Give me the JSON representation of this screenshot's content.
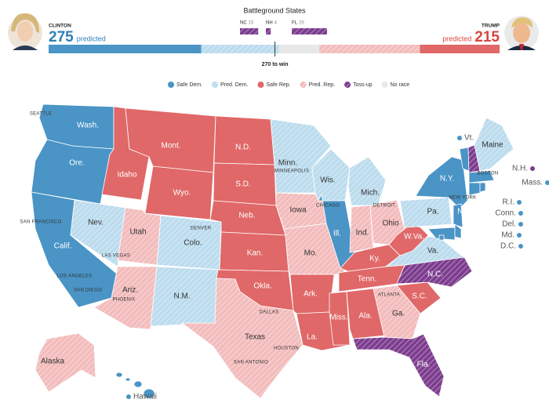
{
  "header": {
    "title": "Battleground States",
    "threshold": {
      "value": 270,
      "label": "270 to win"
    },
    "clinton": {
      "name": "CLINTON",
      "votes": 275,
      "label": "predicted",
      "color": "#2f7fb8"
    },
    "trump": {
      "name": "TRUMP",
      "votes": 215,
      "label": "predicted",
      "color": "#d9453f"
    }
  },
  "battleground": [
    {
      "state": "NC",
      "votes": 15
    },
    {
      "state": "NH",
      "votes": 4
    },
    {
      "state": "FL",
      "votes": 29
    }
  ],
  "bar": {
    "values": [
      182,
      93,
      48,
      120,
      95
    ],
    "statuses": [
      "Safe Dem.",
      "Pred. Dem.",
      "No race",
      "Pred. Rep.",
      "Safe Rep."
    ]
  },
  "legend": [
    {
      "label": "Safe Dem.",
      "color": "#4a94c6",
      "hatch": false
    },
    {
      "label": "Pred. Dem.",
      "color": "#bcdcee",
      "hatch": true
    },
    {
      "label": "Safe Rep.",
      "color": "#e06868",
      "hatch": false
    },
    {
      "label": "Pred. Rep.",
      "color": "#f3bcbc",
      "hatch": true
    },
    {
      "label": "Toss-up",
      "color": "#7d3d8f",
      "hatch": true
    },
    {
      "label": "No race",
      "color": "#e8e8e8",
      "hatch": false
    }
  ],
  "states": [
    {
      "label": "Wash.",
      "status": "Safe Dem."
    },
    {
      "label": "Ore.",
      "status": "Safe Dem."
    },
    {
      "label": "Calif.",
      "status": "Safe Dem."
    },
    {
      "label": "Nev.",
      "status": "Pred. Dem."
    },
    {
      "label": "Idaho",
      "status": "Safe Rep."
    },
    {
      "label": "Mont.",
      "status": "Safe Rep."
    },
    {
      "label": "Wyo.",
      "status": "Safe Rep."
    },
    {
      "label": "Utah",
      "status": "Pred. Rep."
    },
    {
      "label": "Colo.",
      "status": "Pred. Dem."
    },
    {
      "label": "Ariz.",
      "status": "Pred. Rep."
    },
    {
      "label": "N.M.",
      "status": "Pred. Dem."
    },
    {
      "label": "N.D.",
      "status": "Safe Rep."
    },
    {
      "label": "S.D.",
      "status": "Safe Rep."
    },
    {
      "label": "Neb.",
      "status": "Safe Rep."
    },
    {
      "label": "Kan.",
      "status": "Safe Rep."
    },
    {
      "label": "Okla.",
      "status": "Safe Rep."
    },
    {
      "label": "Texas",
      "status": "Pred. Rep."
    },
    {
      "label": "Minn.",
      "status": "Pred. Dem."
    },
    {
      "label": "Iowa",
      "status": "Pred. Rep."
    },
    {
      "label": "Mo.",
      "status": "Pred. Rep."
    },
    {
      "label": "Ark.",
      "status": "Safe Rep."
    },
    {
      "label": "La.",
      "status": "Safe Rep."
    },
    {
      "label": "Wis.",
      "status": "Pred. Dem."
    },
    {
      "label": "Ill.",
      "status": "Safe Dem."
    },
    {
      "label": "Mich.",
      "status": "Pred. Dem."
    },
    {
      "label": "Ind.",
      "status": "Pred. Rep."
    },
    {
      "label": "Ohio",
      "status": "Pred. Rep."
    },
    {
      "label": "Ky.",
      "status": "Safe Rep."
    },
    {
      "label": "Tenn.",
      "status": "Safe Rep."
    },
    {
      "label": "Miss.",
      "status": "Safe Rep."
    },
    {
      "label": "Ala.",
      "status": "Safe Rep."
    },
    {
      "label": "Ga.",
      "status": "Pred. Rep."
    },
    {
      "label": "Fla.",
      "status": "Toss-up"
    },
    {
      "label": "S.C.",
      "status": "Safe Rep."
    },
    {
      "label": "N.C.",
      "status": "Toss-up"
    },
    {
      "label": "Va.",
      "status": "Pred. Dem."
    },
    {
      "label": "W.Va.",
      "status": "Safe Rep."
    },
    {
      "label": "Pa.",
      "status": "Pred. Dem."
    },
    {
      "label": "N.Y.",
      "status": "Safe Dem."
    },
    {
      "label": "Vt.",
      "status": "Safe Dem."
    },
    {
      "label": "N.H.",
      "status": "Toss-up"
    },
    {
      "label": "Maine",
      "status": "Pred. Dem."
    },
    {
      "label": "Mass.",
      "status": "Safe Dem."
    },
    {
      "label": "Conn.",
      "status": "Safe Dem."
    },
    {
      "label": "R.I.",
      "status": "Safe Dem."
    },
    {
      "label": "N.J.",
      "status": "Safe Dem."
    },
    {
      "label": "Md.",
      "status": "Safe Dem."
    },
    {
      "label": "Del.",
      "status": "Safe Dem."
    },
    {
      "label": "D.C.",
      "status": "Safe Dem."
    },
    {
      "label": "Alaska",
      "status": "Pred. Rep."
    },
    {
      "label": "Hawaii",
      "status": "Safe Dem."
    }
  ],
  "cities": [
    "SEATTLE",
    "MINNEAPOLIS",
    "DETROIT",
    "CHICAGO",
    "NEW YORK",
    "BOSTON",
    "SAN FRANCISCO",
    "LAS VEGAS",
    "LOS ANGELES",
    "SAN DIEGO",
    "PHOENIX",
    "DENVER",
    "DALLAS",
    "HOUSTON",
    "SAN ANTONIO",
    "ATLANTA"
  ]
}
